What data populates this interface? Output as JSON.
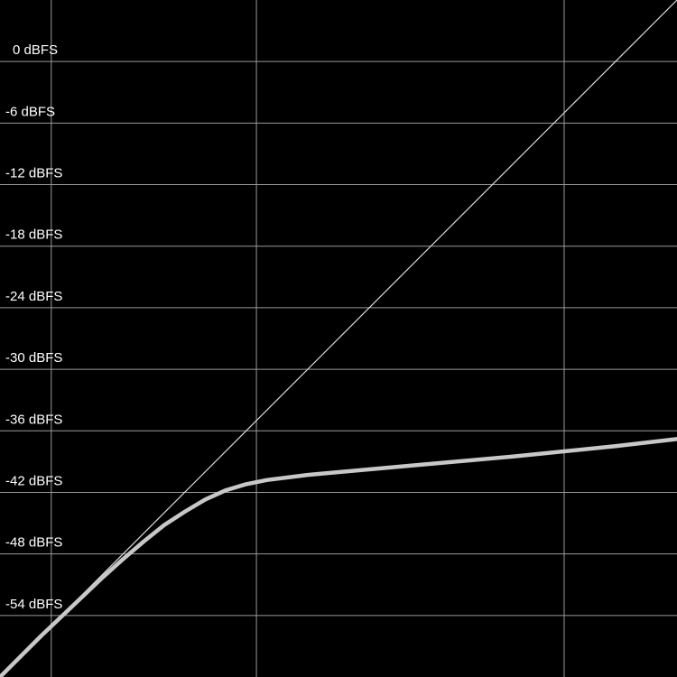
{
  "colors": {
    "background": "#000000",
    "grid": "#9a9a9a",
    "reference": "#d8d8d8",
    "curve": "#c8c8c8",
    "label": "#ffffff"
  },
  "chart_data": {
    "type": "line",
    "title": "",
    "xlabel": "",
    "ylabel": "",
    "grid": true,
    "legend": "none",
    "xlim": [
      -60,
      6
    ],
    "ylim": [
      -60,
      6
    ],
    "y_ticks": [
      {
        "value": 0,
        "label": "0 dBFS"
      },
      {
        "value": -6,
        "label": "-6 dBFS"
      },
      {
        "value": -12,
        "label": "-12 dBFS"
      },
      {
        "value": -18,
        "label": "-18 dBFS"
      },
      {
        "value": -24,
        "label": "-24 dBFS"
      },
      {
        "value": -30,
        "label": "-30 dBFS"
      },
      {
        "value": -36,
        "label": "-36 dBFS"
      },
      {
        "value": -42,
        "label": "-42 dBFS"
      },
      {
        "value": -48,
        "label": "-48 dBFS"
      },
      {
        "value": -54,
        "label": "-54 dBFS"
      }
    ],
    "x_gridlines": [
      -55,
      -35,
      -5
    ],
    "series": [
      {
        "role": "unity-reference",
        "x": [
          -60,
          6
        ],
        "y": [
          -60,
          6
        ]
      },
      {
        "role": "transfer-curve",
        "x": [
          -60,
          -56,
          -52,
          -50,
          -48,
          -46,
          -44,
          -42,
          -40,
          -38,
          -36,
          -34,
          -30,
          -20,
          -10,
          0,
          6
        ],
        "y": [
          -60,
          -56,
          -52.2,
          -50.3,
          -48.5,
          -46.8,
          -45.2,
          -43.9,
          -42.7,
          -41.8,
          -41.2,
          -40.8,
          -40.3,
          -39.4,
          -38.5,
          -37.5,
          -36.8
        ]
      }
    ]
  }
}
